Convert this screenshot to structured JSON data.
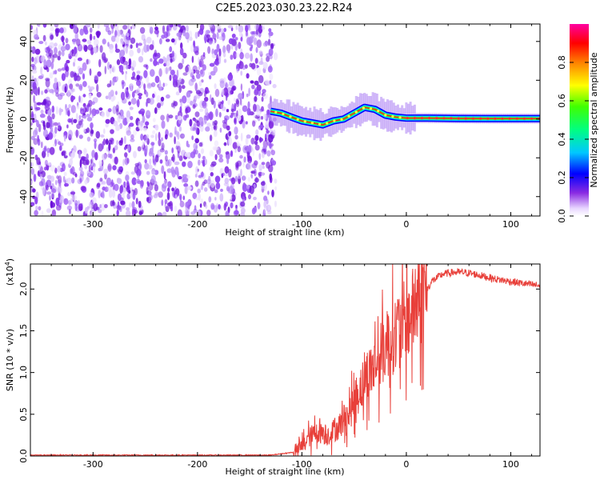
{
  "title": "C2E5.2023.030.23.22.R24",
  "chart_data": [
    {
      "type": "heatmap",
      "xlabel": "Height of straight line (km)",
      "ylabel": "Frequency (Hz)",
      "xlim": [
        -360,
        128
      ],
      "ylim": [
        -50,
        49
      ],
      "x_ticks": [
        -300,
        -200,
        -100,
        0,
        100
      ],
      "y_ticks": [
        -40,
        -20,
        0,
        20,
        40
      ],
      "colorbar": {
        "label": "Normalized spectral amplitude",
        "range": [
          0.0,
          1.0
        ],
        "ticks": [
          0.0,
          0.2,
          0.4,
          0.6,
          0.8
        ]
      },
      "noise_region_x": [
        -360,
        -125
      ],
      "signal_trace": [
        {
          "x": -130,
          "y": 4
        },
        {
          "x": -120,
          "y": 3
        },
        {
          "x": -110,
          "y": 1
        },
        {
          "x": -100,
          "y": -1
        },
        {
          "x": -90,
          "y": -2
        },
        {
          "x": -80,
          "y": -3
        },
        {
          "x": -70,
          "y": -1
        },
        {
          "x": -60,
          "y": 0
        },
        {
          "x": -50,
          "y": 3
        },
        {
          "x": -40,
          "y": 6
        },
        {
          "x": -30,
          "y": 5
        },
        {
          "x": -20,
          "y": 2
        },
        {
          "x": -10,
          "y": 1
        },
        {
          "x": 0,
          "y": 0.5
        },
        {
          "x": 20,
          "y": 0.5
        },
        {
          "x": 50,
          "y": 0.3
        },
        {
          "x": 80,
          "y": 0.2
        },
        {
          "x": 128,
          "y": 0.2
        }
      ]
    },
    {
      "type": "line",
      "xlabel": "Height of straight line (km)",
      "ylabel": "SNR (10 * v/v)",
      "y_multiplier": "(x10",
      "y_multiplier_exp": "4",
      "y_multiplier_close": ")",
      "xlim": [
        -360,
        128
      ],
      "ylim": [
        0,
        2.3
      ],
      "x_ticks": [
        -300,
        -200,
        -100,
        0,
        100
      ],
      "y_ticks": [
        0.0,
        0.5,
        1.0,
        1.5,
        2.0
      ],
      "y_tick_labels": [
        "0.0",
        "0.5",
        "1.0",
        "1.5",
        "2.0"
      ],
      "color": "#e8403a",
      "series": [
        {
          "x": [
            -360,
            -300,
            -200,
            -130,
            -105,
            -95,
            -85,
            -75,
            -65,
            -55,
            -45,
            -35,
            -25,
            -15,
            -5,
            5,
            15,
            25,
            35,
            45,
            55,
            65,
            75,
            85,
            95,
            105,
            115,
            128
          ],
          "y": [
            0.01,
            0.01,
            0.01,
            0.01,
            0.05,
            0.2,
            0.3,
            0.25,
            0.35,
            0.5,
            0.8,
            1.0,
            1.2,
            1.4,
            1.55,
            1.7,
            1.9,
            2.1,
            2.18,
            2.2,
            2.2,
            2.18,
            2.15,
            2.12,
            2.1,
            2.08,
            2.06,
            2.04
          ]
        }
      ]
    }
  ]
}
